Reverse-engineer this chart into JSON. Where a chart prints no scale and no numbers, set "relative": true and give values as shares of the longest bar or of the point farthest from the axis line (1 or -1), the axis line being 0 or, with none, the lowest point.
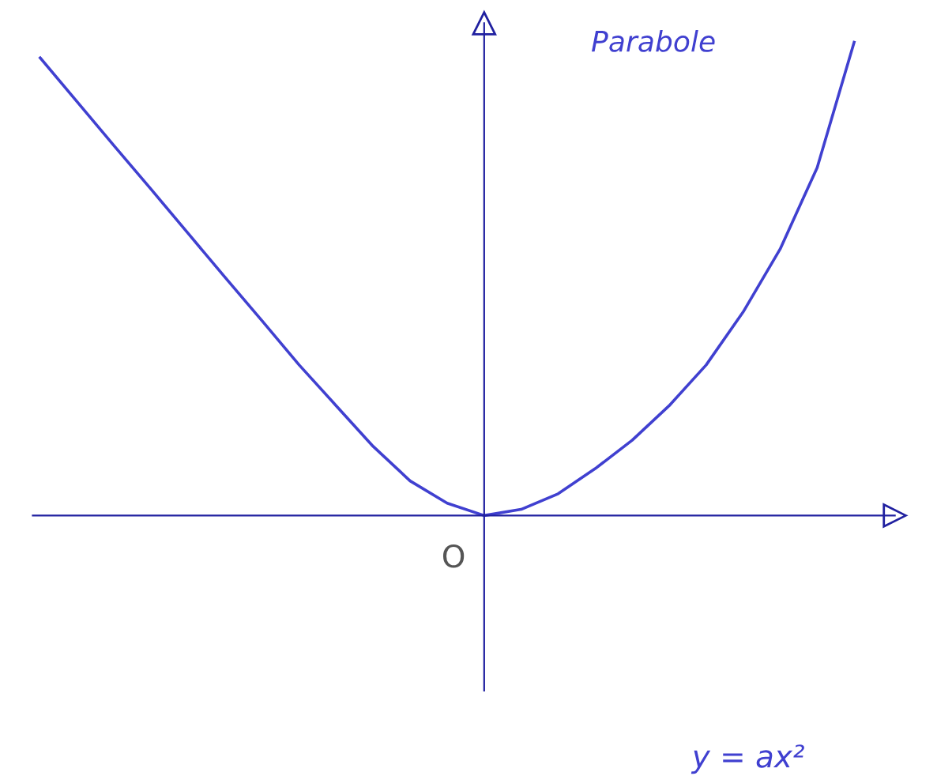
{
  "chart_data": {
    "type": "line",
    "title": "Parabole",
    "relative": true,
    "color": "#4040d0",
    "marker": "none",
    "line_style": "solid",
    "legend": false,
    "categories": [
      null,
      null,
      null,
      null,
      null,
      null,
      null,
      null,
      null,
      null,
      null,
      null,
      null,
      null,
      null,
      null,
      null,
      null,
      null,
      null,
      null,
      null,
      null
    ],
    "values": [
      0.967,
      0.874,
      0.781,
      0.689,
      0.596,
      0.503,
      0.411,
      0.318,
      0.232,
      0.146,
      0.073,
      0.026,
      0,
      0.013,
      0.046,
      0.099,
      0.159,
      0.232,
      0.318,
      0.43,
      0.563,
      0.735,
      1
    ],
    "annotations": [
      "O",
      "y = ax²"
    ]
  }
}
